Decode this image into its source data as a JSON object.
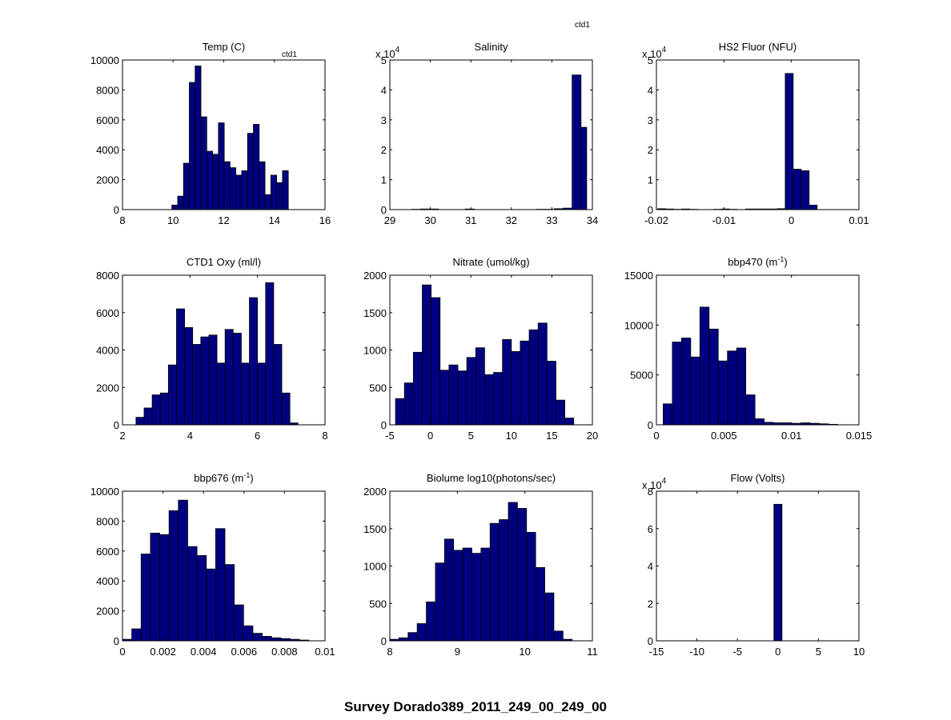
{
  "figure_title": "Survey Dorado389_2011_249_00_249_00",
  "annotations": {
    "ctd1_small": "ctd1",
    "ctd1_top": "ctd1"
  },
  "colors": {
    "bar_fill": "#000080",
    "bar_edge": "#000000",
    "axes": "#000000",
    "background": "#ffffff"
  },
  "chart_data": [
    {
      "type": "bar",
      "title": "Temp (C)",
      "xlabel": "",
      "ylabel": "",
      "xlim": [
        8,
        16
      ],
      "ylim": [
        0,
        10000
      ],
      "exponent": null,
      "xticks": [
        8,
        10,
        12,
        14,
        16
      ],
      "xtick_labels": [
        "8",
        "10",
        "12",
        "14",
        "16"
      ],
      "yticks": [
        0,
        2000,
        4000,
        6000,
        8000,
        10000
      ],
      "ytick_labels": [
        "0",
        "2000",
        "4000",
        "6000",
        "8000",
        "10000"
      ],
      "bin_edges": [
        9.95,
        10.18,
        10.41,
        10.64,
        10.87,
        11.1,
        11.33,
        11.56,
        11.79,
        12.02,
        12.25,
        12.48,
        12.71,
        12.94,
        13.17,
        13.4,
        13.63,
        13.86,
        14.09,
        14.32,
        14.55,
        14.78
      ],
      "values": [
        300,
        900,
        3100,
        8500,
        9600,
        6200,
        3900,
        3700,
        5800,
        3200,
        2800,
        2300,
        2600,
        5100,
        5700,
        3200,
        1000,
        2300,
        1800,
        2600,
        0
      ]
    },
    {
      "type": "bar",
      "title": "Salinity",
      "xlabel": "",
      "ylabel": "",
      "xlim": [
        29,
        34
      ],
      "ylim": [
        0,
        5
      ],
      "exponent": "x 10",
      "exponent_power": "4",
      "xticks": [
        29,
        30,
        31,
        32,
        33,
        34
      ],
      "xtick_labels": [
        "29",
        "30",
        "31",
        "32",
        "33",
        "34"
      ],
      "yticks": [
        0,
        1,
        2,
        3,
        4,
        5
      ],
      "ytick_labels": [
        "0",
        "1",
        "2",
        "3",
        "4",
        "5"
      ],
      "bin_edges": [
        29.32,
        29.54,
        29.76,
        29.98,
        30.2,
        30.42,
        30.64,
        30.86,
        31.08,
        31.3,
        31.52,
        31.74,
        31.96,
        32.18,
        32.4,
        32.62,
        32.84,
        33.06,
        33.28,
        33.5,
        33.72,
        33.86
      ],
      "values": [
        0,
        0.01,
        0.02,
        0.02,
        0,
        0,
        0,
        0.02,
        0,
        0,
        0,
        0,
        0,
        0,
        0,
        0.01,
        0.01,
        0.03,
        0.05,
        4.5,
        2.75
      ]
    },
    {
      "type": "bar",
      "title": "HS2 Fluor (NFU)",
      "xlabel": "",
      "ylabel": "",
      "xlim": [
        -0.02,
        0.01
      ],
      "ylim": [
        0,
        5
      ],
      "exponent": "x 10",
      "exponent_power": "4",
      "xticks": [
        -0.02,
        -0.01,
        0,
        0.01
      ],
      "xtick_labels": [
        "-0.02",
        "-0.01",
        "0",
        "0.01"
      ],
      "yticks": [
        0,
        1,
        2,
        3,
        4,
        5
      ],
      "ytick_labels": [
        "0",
        "1",
        "2",
        "3",
        "4",
        "5"
      ],
      "bin_edges": [
        -0.0198,
        -0.01862,
        -0.01744,
        -0.01626,
        -0.01508,
        -0.0139,
        -0.01272,
        -0.01154,
        -0.01036,
        -0.00918,
        -0.008,
        -0.00682,
        -0.00564,
        -0.00446,
        -0.00328,
        -0.0021,
        -0.00092,
        0.00026,
        0.00144,
        0.00262,
        0.0038,
        0.00498
      ],
      "values": [
        0.03,
        0.02,
        0.01,
        0.02,
        0.01,
        0,
        0,
        0.01,
        0.02,
        0.01,
        0,
        0.02,
        0.02,
        0.02,
        0.02,
        0.03,
        4.55,
        1.35,
        1.3,
        0.15,
        0
      ]
    },
    {
      "type": "bar",
      "title": "CTD1 Oxy (ml/l)",
      "xlabel": "",
      "ylabel": "",
      "xlim": [
        2,
        8
      ],
      "ylim": [
        0,
        8000
      ],
      "exponent": null,
      "xticks": [
        2,
        4,
        6,
        8
      ],
      "xtick_labels": [
        "2",
        "4",
        "6",
        "8"
      ],
      "yticks": [
        0,
        2000,
        4000,
        6000,
        8000
      ],
      "ytick_labels": [
        "0",
        "2000",
        "4000",
        "6000",
        "8000"
      ],
      "bin_edges": [
        2.4,
        2.64,
        2.88,
        3.12,
        3.36,
        3.6,
        3.84,
        4.08,
        4.32,
        4.56,
        4.8,
        5.04,
        5.28,
        5.52,
        5.76,
        6.0,
        6.24,
        6.48,
        6.72,
        6.96,
        7.2
      ],
      "values": [
        400,
        900,
        1600,
        1700,
        3200,
        6200,
        5200,
        4300,
        4700,
        4800,
        3300,
        5100,
        4900,
        3300,
        6800,
        3300,
        7600,
        4300,
        1700,
        100
      ]
    },
    {
      "type": "bar",
      "title": "Nitrate (umol/kg)",
      "xlabel": "",
      "ylabel": "",
      "xlim": [
        -5,
        20
      ],
      "ylim": [
        0,
        2000
      ],
      "exponent": null,
      "xticks": [
        -5,
        0,
        5,
        10,
        15,
        20
      ],
      "xtick_labels": [
        "-5",
        "0",
        "5",
        "10",
        "15",
        "20"
      ],
      "yticks": [
        0,
        500,
        1000,
        1500,
        2000
      ],
      "ytick_labels": [
        "0",
        "500",
        "1000",
        "1500",
        "2000"
      ],
      "bin_edges": [
        -4.3,
        -3.2,
        -2.1,
        -1.0,
        0.1,
        1.2,
        2.3,
        3.4,
        4.5,
        5.6,
        6.7,
        7.8,
        8.9,
        10.0,
        11.1,
        12.2,
        13.3,
        14.4,
        15.5,
        16.6,
        17.7
      ],
      "values": [
        350,
        560,
        970,
        1870,
        1700,
        730,
        800,
        720,
        900,
        1030,
        670,
        700,
        1140,
        980,
        1120,
        1270,
        1360,
        850,
        330,
        90
      ]
    },
    {
      "type": "bar",
      "title": "bbp470 (m",
      "title_sup": "-1",
      "title_tail": ")",
      "xlabel": "",
      "ylabel": "",
      "xlim": [
        0,
        0.015
      ],
      "ylim": [
        0,
        15000
      ],
      "exponent": null,
      "xticks": [
        0,
        0.005,
        0.01,
        0.015
      ],
      "xtick_labels": [
        "0",
        "0.005",
        "0.01",
        "0.015"
      ],
      "yticks": [
        0,
        5000,
        10000,
        15000
      ],
      "ytick_labels": [
        "0",
        "5000",
        "10000",
        "15000"
      ],
      "bin_edges": [
        0.0005,
        0.00118,
        0.00186,
        0.00254,
        0.00322,
        0.0039,
        0.00458,
        0.00526,
        0.00594,
        0.00662,
        0.0073,
        0.00798,
        0.00866,
        0.00934,
        0.01002,
        0.0107,
        0.01138,
        0.01206,
        0.01274,
        0.01342
      ],
      "values": [
        2100,
        8300,
        8700,
        6800,
        11800,
        9600,
        6400,
        7400,
        7700,
        3000,
        600,
        250,
        200,
        200,
        150,
        200,
        150,
        100,
        50
      ]
    },
    {
      "type": "bar",
      "title": "bbp676 (m",
      "title_sup": "-1",
      "title_tail": ")",
      "xlabel": "",
      "ylabel": "",
      "xlim": [
        0,
        0.01
      ],
      "ylim": [
        0,
        10000
      ],
      "exponent": null,
      "xticks": [
        0,
        0.002,
        0.004,
        0.006,
        0.008,
        0.01
      ],
      "xtick_labels": [
        "0",
        "0.002",
        "0.004",
        "0.006",
        "0.008",
        "0.01"
      ],
      "yticks": [
        0,
        2000,
        4000,
        6000,
        8000,
        10000
      ],
      "ytick_labels": [
        "0",
        "2000",
        "4000",
        "6000",
        "8000",
        "10000"
      ],
      "bin_edges": [
        0.0,
        0.00046,
        0.00092,
        0.00138,
        0.00184,
        0.0023,
        0.00276,
        0.00322,
        0.00368,
        0.00414,
        0.0046,
        0.00506,
        0.00552,
        0.00598,
        0.00644,
        0.0069,
        0.00736,
        0.00782,
        0.00828,
        0.00874,
        0.0092,
        0.00966
      ],
      "values": [
        100,
        800,
        5800,
        7200,
        7100,
        8700,
        9400,
        6300,
        5700,
        4800,
        7500,
        5100,
        2400,
        1000,
        500,
        300,
        200,
        150,
        100,
        50,
        0
      ]
    },
    {
      "type": "bar",
      "title": "Biolume log10(photons/sec)",
      "xlabel": "",
      "ylabel": "",
      "xlim": [
        8,
        11
      ],
      "ylim": [
        0,
        2000
      ],
      "exponent": null,
      "xticks": [
        8,
        9,
        10,
        11
      ],
      "xtick_labels": [
        "8",
        "9",
        "10",
        "11"
      ],
      "yticks": [
        0,
        500,
        1000,
        1500,
        2000
      ],
      "ytick_labels": [
        "0",
        "500",
        "1000",
        "1500",
        "2000"
      ],
      "bin_edges": [
        8.0,
        8.135,
        8.27,
        8.405,
        8.54,
        8.675,
        8.81,
        8.945,
        9.08,
        9.215,
        9.35,
        9.485,
        9.62,
        9.755,
        9.89,
        10.025,
        10.16,
        10.295,
        10.43,
        10.565,
        10.7,
        10.835
      ],
      "values": [
        20,
        40,
        110,
        230,
        520,
        1040,
        1360,
        1210,
        1240,
        1170,
        1240,
        1570,
        1620,
        1850,
        1770,
        1450,
        980,
        640,
        130,
        20,
        0
      ]
    },
    {
      "type": "bar",
      "title": "Flow (Volts)",
      "xlabel": "",
      "ylabel": "",
      "xlim": [
        -15,
        10
      ],
      "ylim": [
        0,
        8
      ],
      "exponent": "x 10",
      "exponent_power": "4",
      "xticks": [
        -15,
        -10,
        -5,
        0,
        5,
        10
      ],
      "xtick_labels": [
        "-15",
        "-10",
        "-5",
        "0",
        "5",
        "10"
      ],
      "yticks": [
        0,
        2,
        4,
        6,
        8
      ],
      "ytick_labels": [
        "0",
        "2",
        "4",
        "6",
        "8"
      ],
      "bin_edges": [
        -0.5,
        0.5
      ],
      "values": [
        7.3
      ]
    }
  ]
}
